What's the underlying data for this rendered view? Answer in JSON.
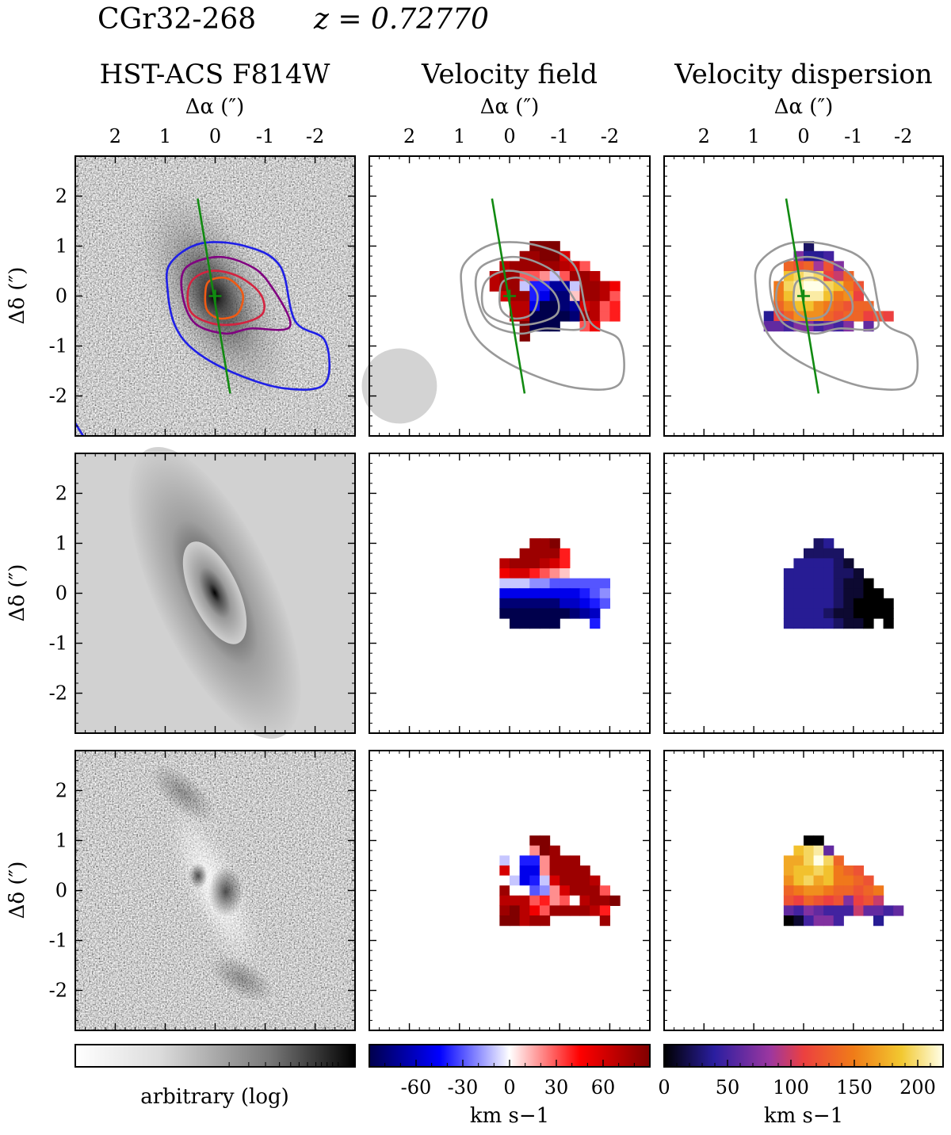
{
  "figure": {
    "object_name": "CGr32-268",
    "redshift_label": "z = 0.72770",
    "columns": [
      "HST-ACS F814W",
      "Velocity field",
      "Velocity dispersion"
    ],
    "ra_label": "Δα (″)",
    "dec_label": "Δδ (″)"
  },
  "chart_data": {
    "type": "heatmap",
    "layout": "3x3 grid of image panels (rows: observed, model, residual)",
    "x_axis": {
      "label": "Δα (″)",
      "range": [
        2.8,
        -2.8
      ],
      "ticks": [
        2,
        1,
        0,
        -1,
        -2
      ],
      "tick_labels": [
        "2",
        "1",
        "0",
        "-1",
        "-2"
      ]
    },
    "y_axis": {
      "label": "Δδ (″)",
      "range": [
        -2.8,
        2.8
      ],
      "ticks": [
        2,
        1,
        0,
        -1,
        -2
      ],
      "tick_labels": [
        "2",
        "1",
        "0",
        "-1",
        "-2"
      ]
    },
    "colorbars": [
      {
        "label": "arbitrary (log)",
        "ticks": [],
        "tick_labels": [],
        "colormap": "grey"
      },
      {
        "label": "km s−1",
        "range": [
          -90,
          90
        ],
        "ticks": [
          -60,
          -30,
          0,
          30,
          60
        ],
        "tick_labels": [
          "-60",
          "-30",
          "0",
          "30",
          "60"
        ],
        "colormap": "seismic"
      },
      {
        "label": "km s−1",
        "range": [
          0,
          220
        ],
        "ticks": [
          0,
          50,
          100,
          150,
          200
        ],
        "tick_labels": [
          "0",
          "50",
          "100",
          "150",
          "200"
        ],
        "colormap": "hot"
      }
    ],
    "overlays": {
      "center_marker": [
        0,
        0
      ],
      "major_axis_ends": [
        [
          0.35,
          1.95
        ],
        [
          -0.3,
          -1.95
        ]
      ],
      "psf_fwhm_arcsec": 1.5,
      "psf_center": [
        2.2,
        -1.8
      ]
    },
    "contour_colors": [
      "#1f1fe6",
      "#800080",
      "#d42340",
      "#f05a14"
    ],
    "colors": {
      "axis_green": "#118a11",
      "contour_grey": "#999999",
      "psf_grey": "#d3d3d3"
    },
    "velocity_field_rows": [
      {
        "panel": "observed",
        "colormap": "seismic",
        "cell_size_arcsec": 0.2,
        "x_start": 0.6,
        "y_start": 1.1,
        "empty": ".",
        "rows": [
          ".....SSS.......",
          "....RRSSP......",
          "..QRRRRRQPM....",
          ".QRRMMLIMRRQ...",
          ".QRRIFFCCIRRQO.",
          "..PRRFEBBKRRQM.",
          "...QQEAABCPQMN.",
          "...QQAAAABRQMN.",
          "....SAAA..MO...",
          "....S..........",
          "..............."
        ]
      },
      {
        "panel": "model",
        "colormap": "seismic",
        "cell_size_arcsec": 0.2,
        "x_start": 0.6,
        "y_start": 1.1,
        "empty": ".",
        "rows": [
          ".....RRS.......",
          "....RRRRN......",
          "..QRRRQPN......",
          "..OPPNMLKJ.....",
          "..IIIHHGGGGGG..",
          "..EEEEEEEEFGH..",
          "..BBBBBBDDEFG..",
          "..AAAAAAABCD...",
          "...AAAAA...F...",
          "...............",
          "..............."
        ]
      },
      {
        "panel": "residual",
        "colormap": "seismic",
        "cell_size_arcsec": 0.2,
        "x_start": 0.6,
        "y_start": 1.1,
        "empty": ".",
        "rows": [
          ".....SS........",
          "...JJLSR.......",
          "..IJFFLRRR.....",
          "..PJEELRRRR....",
          "..JIEFIPRRRQ...",
          "..RJJGHLPRRRM..",
          "..QQQMNLMJQRRS.",
          "..RSQOMRRRRQN..",
          "..SSQRR.....R..",
          "...............",
          "..............."
        ]
      }
    ],
    "dispersion_field_rows": [
      {
        "panel": "observed",
        "colormap": "hot",
        "cell_size_arcsec": 0.2,
        "x_start": 0.8,
        "y_start": 1.1,
        "empty": ".",
        "rows": [
          "....C.........",
          "...GDDE.......",
          "..LKLHKG......",
          "..PQRQJIL.....",
          ".MQRSSQPMK....",
          ".MPRRRPMNJ....",
          ".LNPPNMLKLL...",
          "DJLNNNLKLLJKJ.",
          "FFEGGEFEG.F...",
          "..............",
          ".............."
        ]
      },
      {
        "panel": "model",
        "colormap": "hot",
        "cell_size_arcsec": 0.2,
        "x_start": 0.8,
        "y_start": 1.1,
        "empty": ".",
        "rows": [
          ".....CD........",
          "....CCCC.......",
          "...DDDDCB......",
          "..DDDDDCCB.....",
          "..DDDDDCBBA....",
          "..DDDDDCBBAA...",
          "..DDDDDCBAAAA..",
          "..DDDDCBBAAAA..",
          "..DDDDDCBBA.A..",
          "...............",
          "..............."
        ]
      },
      {
        "panel": "residual",
        "colormap": "hot",
        "cell_size_arcsec": 0.2,
        "x_start": 0.8,
        "y_start": 1.1,
        "empty": ".",
        "rows": [
          "....AA.........",
          "...PQRF........",
          "..OOQSQL.......",
          "..OPPQPMLK.....",
          "..NPQOPMMLK....",
          "..LMNNMLLKLM...",
          "..KJLKJKGJKI...",
          "..FEGFEEEIFFEF.",
          "..ABEGGE...D...",
          "...............",
          "..............."
        ]
      }
    ]
  }
}
